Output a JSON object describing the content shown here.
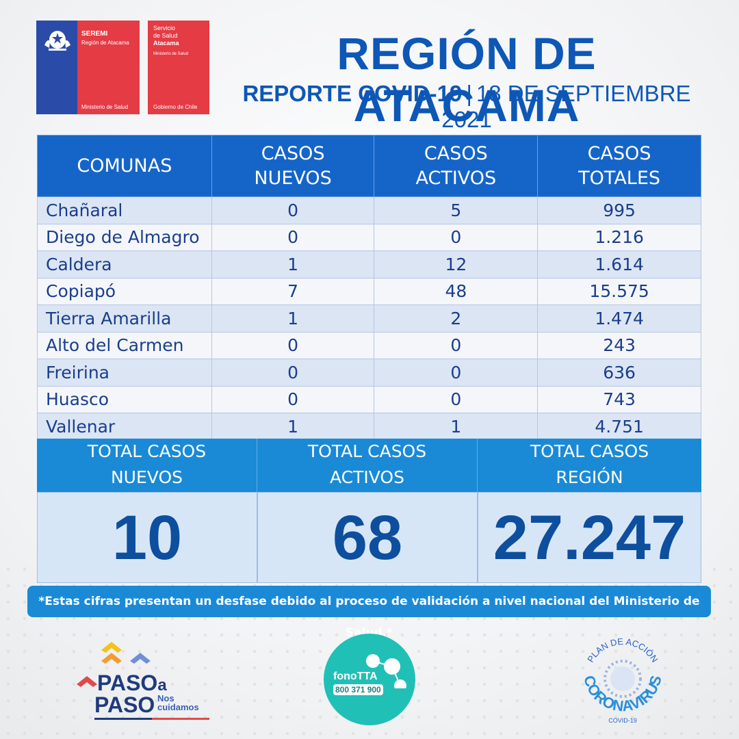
{
  "logos": {
    "seremi": {
      "title": "SEREMI",
      "subtitle": "Región de Atacama",
      "bottom": "Ministerio de Salud"
    },
    "servicio": {
      "line1": "Servicio",
      "line2": "de Salud",
      "line3": "Atacama",
      "small": "Ministerio de Salud",
      "bottom": "Gobierno de Chile"
    }
  },
  "header": {
    "title": "REGIÓN DE ATACAMA",
    "report": "REPORTE COVID-19",
    "separator": "|",
    "date": "18 DE SEPTIEMBRE 2021"
  },
  "table": {
    "columns": [
      "COMUNAS",
      "CASOS NUEVOS",
      "CASOS ACTIVOS",
      "CASOS TOTALES"
    ],
    "col_lines": [
      [
        "COMUNAS"
      ],
      [
        "CASOS",
        "NUEVOS"
      ],
      [
        "CASOS",
        "ACTIVOS"
      ],
      [
        "CASOS",
        "TOTALES"
      ]
    ],
    "rows": [
      [
        "Chañaral",
        "0",
        "5",
        "995"
      ],
      [
        "Diego de Almagro",
        "0",
        "0",
        "1.216"
      ],
      [
        "Caldera",
        "1",
        "12",
        "1.614"
      ],
      [
        "Copiapó",
        "7",
        "48",
        "15.575"
      ],
      [
        "Tierra Amarilla",
        "1",
        "2",
        "1.474"
      ],
      [
        "Alto del Carmen",
        "0",
        "0",
        "243"
      ],
      [
        "Freirina",
        "0",
        "0",
        "636"
      ],
      [
        "Huasco",
        "0",
        "0",
        "743"
      ],
      [
        "Vallenar",
        "1",
        "1",
        "4.751"
      ]
    ]
  },
  "totals": [
    {
      "label_1": "TOTAL CASOS",
      "label_2": "NUEVOS",
      "value": "10"
    },
    {
      "label_1": "TOTAL CASOS",
      "label_2": "ACTIVOS",
      "value": "68"
    },
    {
      "label_1": "TOTAL CASOS",
      "label_2": "REGIÓN",
      "value": "27.247"
    }
  ],
  "note": "*Estas cifras presentan un desfase debido al proceso de validación a nivel nacional del Ministerio de Salud.*",
  "footer": {
    "paso": {
      "line1": "PASO",
      "a": "a",
      "line2": "PASO",
      "tag1": "Nos",
      "tag2": "cuidamos"
    },
    "fono": {
      "name": "fonoTTA",
      "phone": "800 371 900"
    },
    "corona": {
      "arc_top": "PLAN DE ACCIÓN",
      "arc_bottom": "CORONAVIRUS",
      "small": "COVID-19"
    }
  },
  "colors": {
    "primary": "#0d57b7",
    "header_blue": "#1565c8",
    "totals_blue": "#1a8ad6",
    "red": "#e43b44",
    "teal": "#20c0b7"
  }
}
